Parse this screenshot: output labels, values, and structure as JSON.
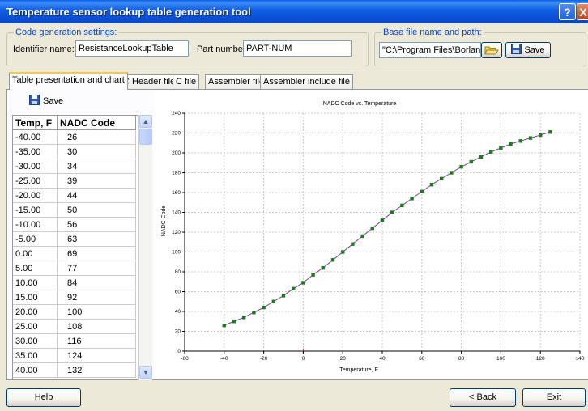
{
  "window": {
    "title": "Temperature sensor lookup table generation tool",
    "help_button": "?",
    "close_button": "X"
  },
  "code_settings": {
    "legend": "Code generation settings:",
    "identifier_label": "Identifier name:",
    "identifier_value": "ResistanceLookupTable",
    "part_number_label": "Part number:",
    "part_number_value": "PART-NUM"
  },
  "base_file": {
    "legend": "Base file name and path:",
    "path_value": "\"C:\\Program Files\\Borland\\",
    "browse_icon": "folder-open-icon",
    "save_label": "Save",
    "save_icon": "floppy-disk-icon"
  },
  "tabs": [
    {
      "label": "Table presentation and chart",
      "active": true
    },
    {
      "label": "C Header file",
      "active": false
    },
    {
      "label": "C file",
      "active": false
    },
    {
      "label": "Assembler file",
      "active": false
    },
    {
      "label": "Assembler include file",
      "active": false
    }
  ],
  "table_panel": {
    "save_label": "Save",
    "save_icon": "floppy-disk-icon",
    "columns": [
      "Temp, F",
      "NADC Code"
    ],
    "rows": [
      [
        "-40.00",
        "26"
      ],
      [
        "-35.00",
        "30"
      ],
      [
        "-30.00",
        "34"
      ],
      [
        "-25.00",
        "39"
      ],
      [
        "-20.00",
        "44"
      ],
      [
        "-15.00",
        "50"
      ],
      [
        "-10.00",
        "56"
      ],
      [
        "-5.00",
        "63"
      ],
      [
        "0.00",
        "69"
      ],
      [
        "5.00",
        "77"
      ],
      [
        "10.00",
        "84"
      ],
      [
        "15.00",
        "92"
      ],
      [
        "20.00",
        "100"
      ],
      [
        "25.00",
        "108"
      ],
      [
        "30.00",
        "116"
      ],
      [
        "35.00",
        "124"
      ],
      [
        "40.00",
        "132"
      ]
    ]
  },
  "chart_data": {
    "type": "line",
    "title": "NADC Code vs. Temperature",
    "xlabel": "Temperature, F",
    "ylabel": "NADC Code",
    "xlim": [
      -60,
      140
    ],
    "ylim": [
      0,
      240
    ],
    "xticks": [
      -60,
      -40,
      -20,
      0,
      20,
      40,
      60,
      80,
      100,
      120,
      140
    ],
    "yticks": [
      0,
      20,
      40,
      60,
      80,
      100,
      120,
      140,
      160,
      180,
      200,
      220,
      240
    ],
    "grid": true,
    "line_color": "#7A3FA0",
    "marker_color": "#1E7A1E",
    "series": [
      {
        "x": [
          -40,
          -35,
          -30,
          -25,
          -20,
          -15,
          -10,
          -5,
          0,
          5,
          10,
          15,
          20,
          25,
          30,
          35,
          40,
          45,
          50,
          55,
          60,
          65,
          70,
          75,
          80,
          85,
          90,
          95,
          100,
          105,
          110,
          115,
          120,
          125
        ],
        "y": [
          26,
          30,
          34,
          39,
          44,
          50,
          56,
          63,
          69,
          77,
          84,
          92,
          100,
          108,
          116,
          124,
          132,
          140,
          147,
          154,
          161,
          168,
          174,
          180,
          186,
          191,
          196,
          201,
          205,
          209,
          212,
          215,
          218,
          221
        ]
      }
    ]
  },
  "footer": {
    "help_label": "Help",
    "back_label": "< Back",
    "exit_label": "Exit"
  }
}
